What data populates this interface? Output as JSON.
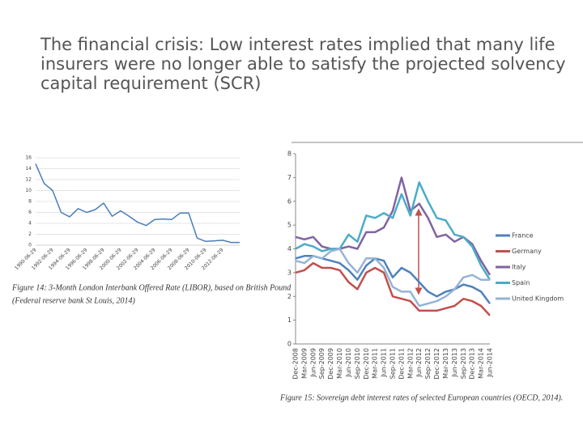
{
  "title_lines": [
    "The financial crisis: Low interest rates implied that many life",
    "insurers were no longer able to satisfy the projected solvency",
    "capital requirement (SCR)"
  ],
  "chart_data": [
    {
      "type": "line",
      "categories": [
        "1990-06-29",
        null,
        "1992-06-29",
        null,
        "1994-06-29",
        null,
        "1996-06-29",
        null,
        "1998-06-29",
        null,
        "2000-06-29",
        null,
        "2002-06-29",
        null,
        "2004-06-29",
        null,
        "2006-06-29",
        null,
        "2008-06-29",
        null,
        "2010-06-29",
        null,
        "2012-06-29",
        null,
        null
      ],
      "values": [
        14.9,
        11.3,
        10.0,
        6.0,
        5.2,
        6.7,
        6.0,
        6.5,
        7.7,
        5.3,
        6.3,
        5.3,
        4.2,
        3.6,
        4.7,
        4.8,
        4.7,
        5.9,
        5.9,
        1.3,
        0.7,
        0.8,
        0.9,
        0.5,
        0.5
      ],
      "color": "#4a7ebb",
      "ylim": [
        0,
        16
      ],
      "yticks": [
        0,
        2,
        4,
        6,
        8,
        10,
        12,
        14,
        16
      ],
      "grid": true,
      "caption_lines": [
        "Figure 14: 3-Month London Interbank Offered Rate (LIBOR), based on British Pound",
        "(Federal reserve bank St Louis, 2014)"
      ]
    },
    {
      "type": "line",
      "categories": [
        "Dec-2008",
        "Mar-2009",
        "Jun-2009",
        "Sep-2009",
        "Dec-2009",
        "Mar-2010",
        "Jun-2010",
        "Sep-2010",
        "Dec-2010",
        "Mar-2011",
        "Jun-2011",
        "Sep-2011",
        "Dec-2011",
        "Mar-2012",
        "Jun-2012",
        "Sep-2012",
        "Dec-2012",
        "Mar-2013",
        "Jun-2013",
        "Sep-2013",
        "Dec-2013",
        "Mar-2014",
        "Jun-2014"
      ],
      "series": [
        {
          "name": "France",
          "color": "#4f81bd",
          "values": [
            3.6,
            3.7,
            3.7,
            3.6,
            3.5,
            3.4,
            3.1,
            2.7,
            3.3,
            3.6,
            3.5,
            2.8,
            3.2,
            3.0,
            2.6,
            2.2,
            2.0,
            2.2,
            2.3,
            2.5,
            2.4,
            2.2,
            1.7
          ]
        },
        {
          "name": "Germany",
          "color": "#c0504d",
          "values": [
            3.0,
            3.1,
            3.4,
            3.2,
            3.2,
            3.1,
            2.6,
            2.3,
            3.0,
            3.2,
            3.0,
            2.0,
            1.9,
            1.8,
            1.4,
            1.4,
            1.4,
            1.5,
            1.6,
            1.9,
            1.8,
            1.6,
            1.2
          ]
        },
        {
          "name": "Italy",
          "color": "#8064a2",
          "values": [
            4.5,
            4.4,
            4.5,
            4.1,
            4.0,
            4.0,
            4.1,
            4.0,
            4.7,
            4.7,
            4.9,
            5.6,
            7.0,
            5.6,
            5.9,
            5.3,
            4.5,
            4.6,
            4.3,
            4.5,
            4.2,
            3.5,
            2.9
          ]
        },
        {
          "name": "Spain",
          "color": "#4bacc6",
          "values": [
            4.0,
            4.2,
            4.1,
            3.9,
            4.0,
            4.0,
            4.6,
            4.3,
            5.4,
            5.3,
            5.5,
            5.3,
            6.3,
            5.4,
            6.8,
            6.0,
            5.3,
            5.2,
            4.6,
            4.5,
            4.1,
            3.3,
            2.7
          ]
        },
        {
          "name": "United Kingdom",
          "color": "#95b3d7",
          "values": [
            3.5,
            3.4,
            3.7,
            3.6,
            3.9,
            4.0,
            3.4,
            3.0,
            3.6,
            3.6,
            3.2,
            2.4,
            2.2,
            2.2,
            1.6,
            1.7,
            1.8,
            2.0,
            2.3,
            2.8,
            2.9,
            2.7,
            2.7
          ]
        }
      ],
      "ylim": [
        0,
        8
      ],
      "yticks": [
        0,
        1,
        2,
        3,
        4,
        5,
        6,
        7,
        8
      ],
      "grid": false,
      "caption_lines": [
        "Figure 15: Sovereign debt interest rates of selected European countries (OECD, 2014)."
      ]
    }
  ]
}
